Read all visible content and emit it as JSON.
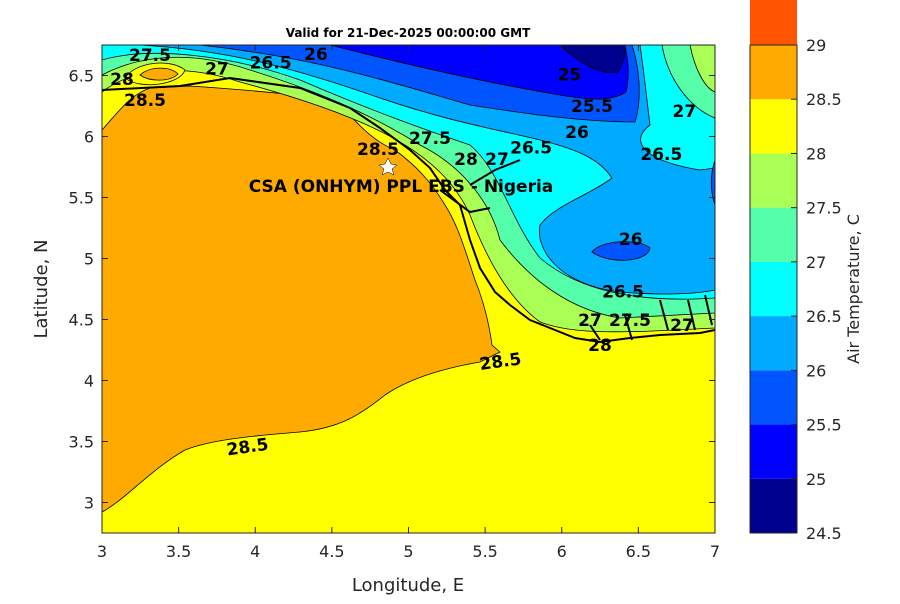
{
  "chart_data": {
    "type": "heatmap",
    "subtype": "filled-contour-map",
    "title": "Valid for 21-Dec-2025 00:00:00 GMT",
    "xlabel": "Longitude, E",
    "ylabel": "Latitude, N",
    "xlim": [
      3,
      7
    ],
    "ylim": [
      2.75,
      6.75
    ],
    "xticks": [
      "3",
      "3.5",
      "4",
      "4.5",
      "5",
      "5.5",
      "6",
      "6.5",
      "7"
    ],
    "yticks": [
      "3",
      "3.5",
      "4",
      "4.5",
      "5",
      "5.5",
      "6",
      "6.5"
    ],
    "colorbar": {
      "label": "Air Temperature, C",
      "ticks": [
        "24.5",
        "25",
        "25.5",
        "26",
        "26.5",
        "27",
        "27.5",
        "28",
        "28.5",
        "29"
      ],
      "colors": [
        "#00008f",
        "#0000ff",
        "#0055ff",
        "#00aaff",
        "#00ffff",
        "#55ffaa",
        "#aaff55",
        "#ffff00",
        "#ffaa00",
        "#ff5500"
      ]
    },
    "annotation": "CSA (ONHYM) PPL EBS - Nigeria",
    "contour_labels": [
      {
        "text": "27.5",
        "lon": 3.4,
        "lat": 6.65
      },
      {
        "text": "28",
        "lon": 3.25,
        "lat": 6.55
      },
      {
        "text": "28.5",
        "lon": 3.3,
        "lat": 6.4
      },
      {
        "text": "27",
        "lon": 3.75,
        "lat": 6.55
      },
      {
        "text": "26.5",
        "lon": 4.1,
        "lat": 6.6
      },
      {
        "text": "26",
        "lon": 4.25,
        "lat": 6.68
      },
      {
        "text": "25",
        "lon": 6.05,
        "lat": 6.5
      },
      {
        "text": "25.5",
        "lon": 6.2,
        "lat": 6.2
      },
      {
        "text": "26",
        "lon": 6.1,
        "lat": 6.05
      },
      {
        "text": "27",
        "lon": 6.8,
        "lat": 6.2
      },
      {
        "text": "26.5",
        "lon": 6.65,
        "lat": 5.85
      },
      {
        "text": "26.5",
        "lon": 5.8,
        "lat": 5.9
      },
      {
        "text": "27",
        "lon": 5.45,
        "lat": 5.75
      },
      {
        "text": "27.5",
        "lon": 5.1,
        "lat": 5.9
      },
      {
        "text": "28",
        "lon": 5.05,
        "lat": 5.82
      },
      {
        "text": "28.5",
        "lon": 4.85,
        "lat": 5.85
      },
      {
        "text": "26",
        "lon": 6.45,
        "lat": 5.15
      },
      {
        "text": "26.5",
        "lon": 6.4,
        "lat": 4.72
      },
      {
        "text": "27",
        "lon": 6.25,
        "lat": 4.42
      },
      {
        "text": "27.5",
        "lon": 6.35,
        "lat": 4.42
      },
      {
        "text": "28",
        "lon": 6.25,
        "lat": 4.3
      },
      {
        "text": "27",
        "lon": 6.65,
        "lat": 4.45
      },
      {
        "text": "28.5",
        "lon": 5.6,
        "lat": 4.15
      },
      {
        "text": "28.5",
        "lon": 3.95,
        "lat": 3.45
      }
    ]
  }
}
